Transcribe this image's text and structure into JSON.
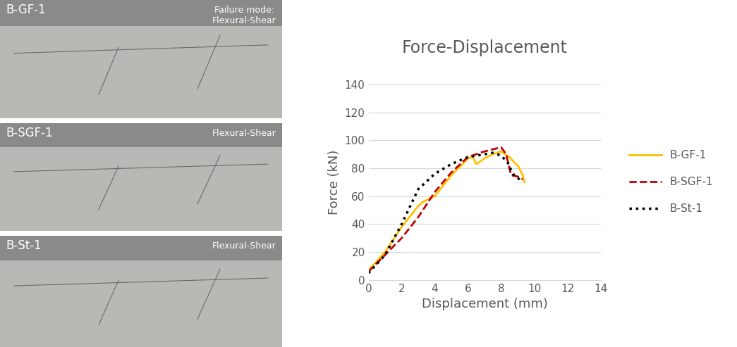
{
  "chart_data": {
    "type": "line",
    "title": "Force-Displacement",
    "x_label": "Displacement (mm)",
    "y_label": "Force (kN)",
    "xlim": [
      0,
      14
    ],
    "xticks": [
      0,
      2,
      4,
      6,
      8,
      10,
      12,
      14
    ],
    "ylim": [
      0,
      140
    ],
    "yticks": [
      0,
      20,
      40,
      60,
      80,
      100,
      120,
      140
    ],
    "grid": true,
    "legend": "right",
    "series": [
      {
        "name": "B-GF-1",
        "color": "#FFC000",
        "line_style": "solid",
        "x": [
          0,
          1,
          2,
          3,
          3.3,
          4,
          5,
          6,
          6.3,
          6.5,
          7,
          7.5,
          8,
          8.5,
          8.8,
          9,
          9.3,
          9.4
        ],
        "values": [
          7,
          20,
          38,
          53,
          56,
          60,
          75,
          87,
          88,
          83,
          87,
          90,
          92,
          88,
          84,
          82,
          75,
          70
        ]
      },
      {
        "name": "B-SGF-1",
        "color": "#C00000",
        "line_style": "dashed",
        "x": [
          0,
          1,
          2,
          3,
          4,
          5,
          6,
          7,
          8,
          8.3,
          8.6,
          9,
          9.3
        ],
        "values": [
          6,
          18,
          30,
          45,
          63,
          77,
          88,
          92,
          95,
          90,
          75,
          74,
          72
        ]
      },
      {
        "name": "B-St-1",
        "color": "#000000",
        "line_style": "dotted",
        "x": [
          0,
          1,
          2,
          3,
          4,
          5,
          6,
          7,
          7.5,
          8,
          8.4,
          8.7,
          9.2
        ],
        "values": [
          5,
          18,
          40,
          65,
          76,
          83,
          88,
          90,
          91,
          89,
          84,
          76,
          71
        ]
      }
    ]
  },
  "photos": [
    {
      "label": "B-GF-1",
      "caption": "Failure mode:\nFlexural-Shear"
    },
    {
      "label": "B-SGF-1",
      "caption": "Flexural-Shear"
    },
    {
      "label": "B-St-1",
      "caption": "Flexural-Shear"
    }
  ]
}
